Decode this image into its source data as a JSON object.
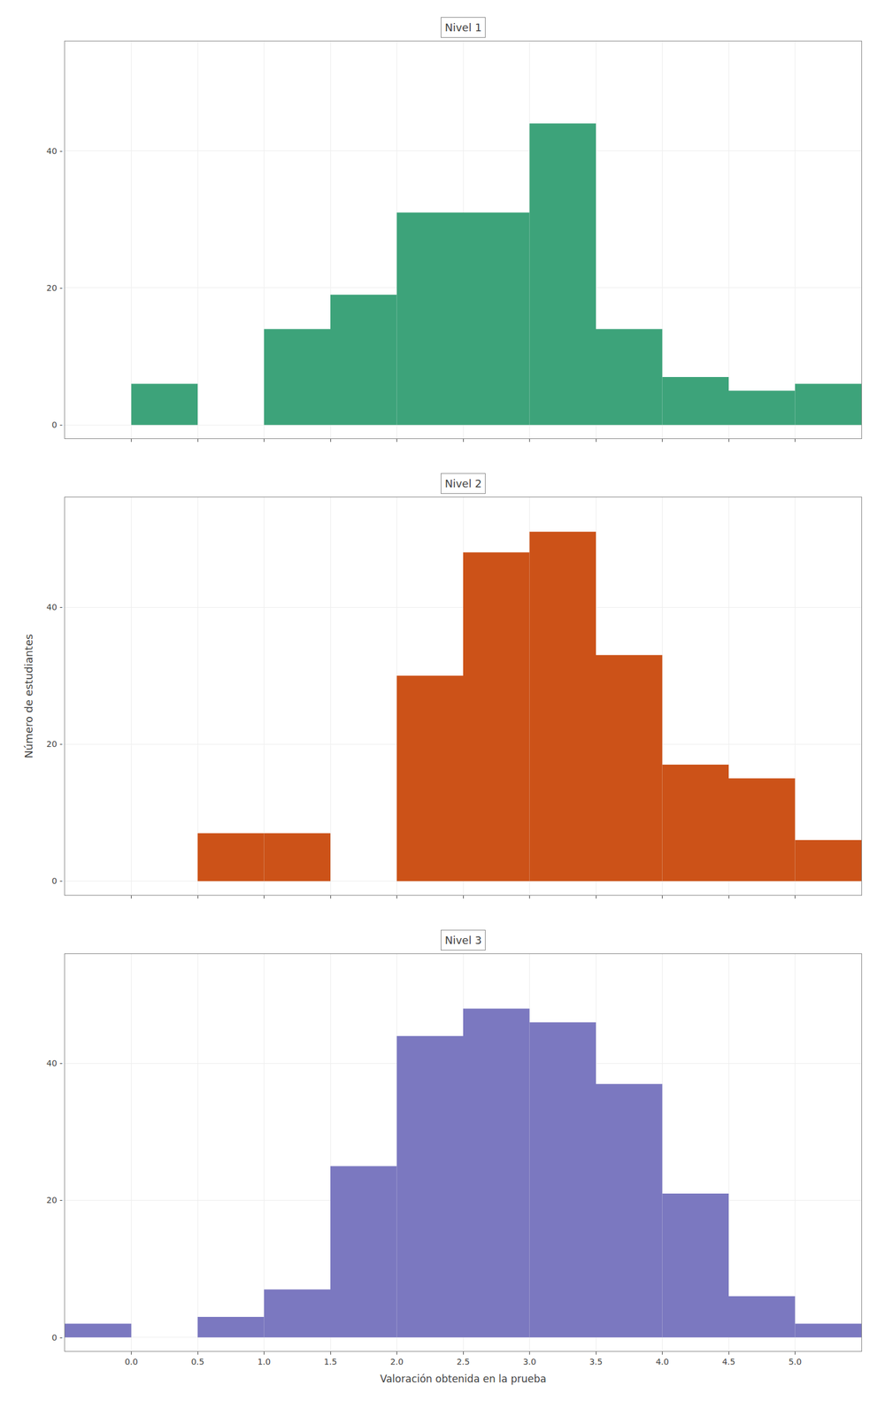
{
  "chart_data": [
    {
      "type": "histogram",
      "title": "Nivel 1",
      "color": "#3da37a",
      "bins": [
        -0.5,
        0.0,
        0.5,
        1.0,
        1.5,
        2.0,
        2.5,
        3.0,
        3.5,
        4.0,
        4.5,
        5.0,
        5.5
      ],
      "values": [
        0,
        6,
        0,
        14,
        19,
        31,
        31,
        44,
        14,
        7,
        5,
        6
      ],
      "xlim": [
        -0.5,
        5.5
      ],
      "xticks": [
        0,
        0.5,
        1,
        1.5,
        2,
        2.5,
        3,
        3.5,
        4,
        4.5,
        5
      ],
      "ylim": [
        -2,
        56
      ],
      "yticks": [
        {
          "value": 0,
          "label": "0 -"
        },
        {
          "value": 20,
          "label": "20 -"
        },
        {
          "value": 40,
          "label": "40 -"
        }
      ],
      "grid": true,
      "tick_labels": "y"
    },
    {
      "type": "histogram",
      "title": "Nivel 2",
      "color": "#cc5218",
      "bins": [
        -0.5,
        0.0,
        0.5,
        1.0,
        1.5,
        2.0,
        2.5,
        3.0,
        3.5,
        4.0,
        4.5,
        5.0,
        5.5
      ],
      "values": [
        0,
        0,
        7,
        7,
        0,
        30,
        48,
        51,
        33,
        17,
        15,
        6
      ],
      "ylabel": "Número de estudiantes",
      "xlim": [
        -0.5,
        5.5
      ],
      "xticks": [
        0,
        0.5,
        1,
        1.5,
        2,
        2.5,
        3,
        3.5,
        4,
        4.5,
        5
      ],
      "ylim": [
        -2,
        56
      ],
      "yticks": [
        {
          "value": 0,
          "label": "0 -"
        },
        {
          "value": 20,
          "label": "20 -"
        },
        {
          "value": 40,
          "label": "40 -"
        }
      ],
      "grid": true,
      "tick_labels": "y"
    },
    {
      "type": "histogram",
      "title": "Nivel 3",
      "color": "#7b78c0",
      "bins": [
        -0.5,
        0.0,
        0.5,
        1.0,
        1.5,
        2.0,
        2.5,
        3.0,
        3.5,
        4.0,
        4.5,
        5.0,
        5.5
      ],
      "values": [
        2,
        0,
        3,
        7,
        25,
        44,
        48,
        46,
        37,
        21,
        6,
        2
      ],
      "xlabel": "Valoración obtenida en la prueba",
      "xlim": [
        -0.5,
        5.5
      ],
      "xticks": [
        {
          "value": 0,
          "label": "0.0"
        },
        0.5,
        {
          "value": 1,
          "label": "1.0"
        },
        1.5,
        {
          "value": 2,
          "label": "2.0"
        },
        2.5,
        {
          "value": 3,
          "label": "3.0"
        },
        3.5,
        {
          "value": 4,
          "label": "4.0"
        },
        4.5,
        {
          "value": 5,
          "label": "5.0"
        }
      ],
      "ylim": [
        -2,
        56
      ],
      "yticks": [
        {
          "value": 0,
          "label": "0 -"
        },
        {
          "value": 20,
          "label": "20 -"
        },
        {
          "value": 40,
          "label": "40 -"
        }
      ],
      "grid": true
    }
  ]
}
